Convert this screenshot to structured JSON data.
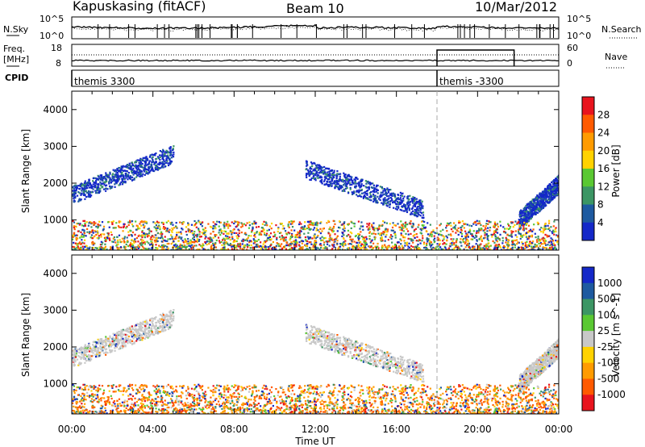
{
  "header": {
    "station": "Kapuskasing (fitACF)",
    "beam": "Beam 10",
    "date": "10/Mar/2012"
  },
  "noise_panel": {
    "left_label": "N.Sky",
    "left_ticks": [
      "10^5",
      "10^0"
    ],
    "right_label": "N.Search",
    "right_ticks": [
      "10^5",
      "10^0"
    ]
  },
  "freq_panel": {
    "left_label_top": "Freq.",
    "left_label_bottom": "[MHz]",
    "left_ticks": [
      "18",
      "8"
    ],
    "right_label": "Nave",
    "right_ticks": [
      "60",
      "0"
    ]
  },
  "cpid_panel": {
    "label": "CPID",
    "programs": [
      {
        "name": "themis 3300",
        "start_hour": 0
      },
      {
        "name": "themis -3300",
        "start_hour": 18
      }
    ]
  },
  "power_panel": {
    "ylabel": "Slant Range [km]",
    "colorbar_label": "Power [dB]",
    "colorbar_ticks": [
      "28",
      "24",
      "20",
      "16",
      "12",
      "8",
      "4"
    ],
    "colorbar_colors": [
      "#e8141e",
      "#ff5a00",
      "#ff9b00",
      "#ffd200",
      "#5ac832",
      "#3c9664",
      "#1e5aa0",
      "#1428c8"
    ]
  },
  "velocity_panel": {
    "ylabel": "Slant Range [km]",
    "colorbar_label": "Velocity [m s^-1]",
    "colorbar_ticks": [
      "1000",
      "500",
      "100",
      "25",
      "-25",
      "-100",
      "-500",
      "-1000"
    ],
    "colorbar_colors": [
      "#1428c8",
      "#1e5aa0",
      "#3c9664",
      "#5ac832",
      "#c8c8c8",
      "#ffd200",
      "#ff9b00",
      "#ff5a00",
      "#e8141e"
    ]
  },
  "xaxis": {
    "label": "Time UT",
    "ticks": [
      "00:00",
      "04:00",
      "08:00",
      "12:00",
      "16:00",
      "20:00",
      "00:00"
    ]
  },
  "chart_data": {
    "type": "heatmap",
    "title": "Kapuskasing (fitACF) Beam 10 10/Mar/2012",
    "xlabel": "Time UT",
    "ylabel": "Slant Range [km]",
    "x_range_hours": [
      0,
      24
    ],
    "x_ticks": [
      "00:00",
      "04:00",
      "08:00",
      "12:00",
      "16:00",
      "20:00",
      "00:00"
    ],
    "ylim_km": [
      180,
      4500
    ],
    "y_ticks_km": [
      1000,
      2000,
      3000,
      4000
    ],
    "dashed_marker_hour": 18,
    "power_colorbar_db": [
      4,
      8,
      12,
      16,
      20,
      24,
      28
    ],
    "velocity_colorbar_ms": [
      -1000,
      -500,
      -100,
      -25,
      25,
      100,
      500,
      1000
    ],
    "scatter_features": [
      {
        "name": "arc",
        "start_hour": 0,
        "end_hour": 5,
        "range_start_km": 1700,
        "range_end_km": 2800,
        "mean_power_db": 8
      },
      {
        "name": "arc",
        "start_hour": 11.5,
        "end_hour": 17.3,
        "range_start_km": 2400,
        "range_end_km": 1300,
        "mean_power_db": 8
      },
      {
        "name": "arc",
        "start_hour": 22,
        "end_hour": 24,
        "range_start_km": 1000,
        "range_end_km": 2000,
        "mean_power_db": 8
      },
      {
        "name": "near-range",
        "start_hour": 0,
        "end_hour": 24,
        "range_start_km": 200,
        "range_end_km": 1000,
        "mean_power_db": 12
      }
    ]
  }
}
